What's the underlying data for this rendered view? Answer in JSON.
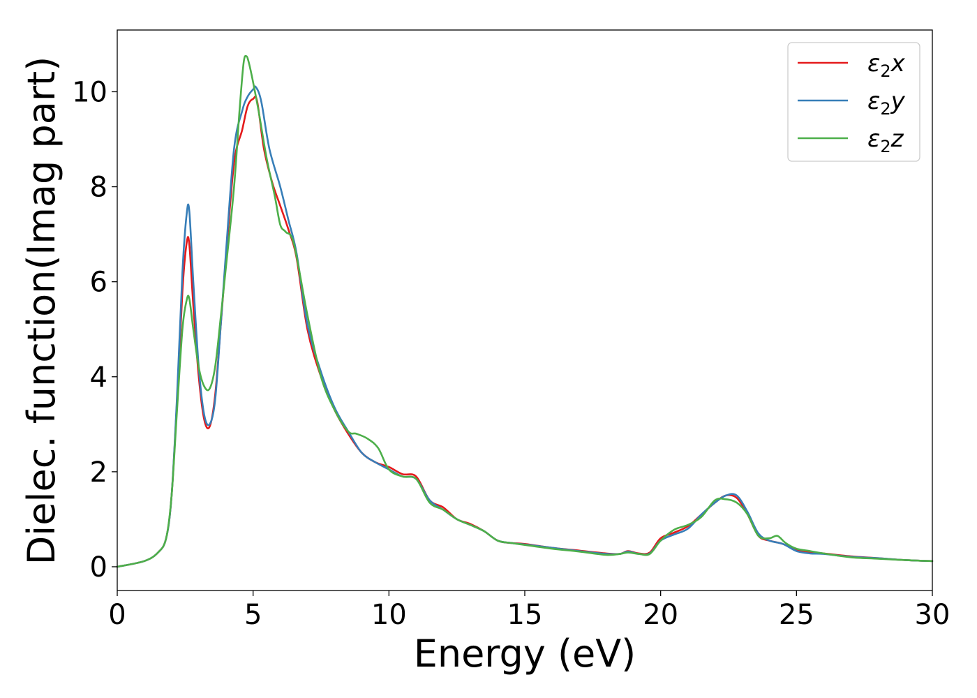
{
  "chart_data": {
    "type": "line",
    "title": "",
    "xlabel": "Energy (eV)",
    "ylabel": "Dielec. function(Imag part)",
    "xlim": [
      0,
      30
    ],
    "ylim": [
      -0.5,
      11.3
    ],
    "xticks": [
      0,
      5,
      10,
      15,
      20,
      25,
      30
    ],
    "yticks": [
      0,
      2,
      4,
      6,
      8,
      10
    ],
    "grid": false,
    "legend_position": "top-right",
    "series": [
      {
        "name": "ε₂x",
        "legend_base": "ε",
        "legend_sub": "2",
        "legend_var": "x",
        "color": "#e41a1c",
        "x": [
          0,
          1,
          1.5,
          1.8,
          2.0,
          2.2,
          2.4,
          2.55,
          2.65,
          2.8,
          3.0,
          3.2,
          3.4,
          3.6,
          3.8,
          4.0,
          4.3,
          4.6,
          4.8,
          5.0,
          5.15,
          5.4,
          5.7,
          6.0,
          6.3,
          6.6,
          7.0,
          7.5,
          8.0,
          8.5,
          9.0,
          9.5,
          10.0,
          10.5,
          11.0,
          11.5,
          12.0,
          12.5,
          13.0,
          13.5,
          14.0,
          14.5,
          15.0,
          16.0,
          17.0,
          18.0,
          18.5,
          18.8,
          19.2,
          19.6,
          20.0,
          20.5,
          21.0,
          21.5,
          22.0,
          22.4,
          22.8,
          23.2,
          23.6,
          24.0,
          24.5,
          25.0,
          25.5,
          26.0,
          27.0,
          28.0,
          29.0,
          30.0
        ],
        "values": [
          0,
          0.12,
          0.3,
          0.6,
          1.5,
          3.5,
          5.8,
          6.8,
          6.8,
          5.5,
          4.0,
          3.1,
          2.95,
          3.6,
          5.0,
          6.5,
          8.5,
          9.2,
          9.7,
          9.85,
          9.8,
          8.8,
          8.1,
          7.6,
          7.1,
          6.5,
          5.0,
          4.0,
          3.3,
          2.8,
          2.4,
          2.2,
          2.1,
          1.95,
          1.9,
          1.4,
          1.25,
          1.0,
          0.9,
          0.75,
          0.55,
          0.5,
          0.48,
          0.4,
          0.34,
          0.28,
          0.27,
          0.33,
          0.28,
          0.3,
          0.6,
          0.72,
          0.85,
          1.1,
          1.35,
          1.5,
          1.45,
          1.1,
          0.65,
          0.55,
          0.48,
          0.35,
          0.3,
          0.28,
          0.22,
          0.18,
          0.14,
          0.12
        ]
      },
      {
        "name": "ε₂y",
        "legend_base": "ε",
        "legend_sub": "2",
        "legend_var": "y",
        "color": "#377eb8",
        "x": [
          0,
          1,
          1.5,
          1.8,
          2.0,
          2.2,
          2.4,
          2.55,
          2.65,
          2.8,
          3.0,
          3.2,
          3.4,
          3.6,
          3.8,
          4.0,
          4.3,
          4.6,
          4.8,
          5.0,
          5.1,
          5.3,
          5.6,
          6.0,
          6.3,
          6.6,
          7.0,
          7.5,
          8.0,
          8.5,
          9.0,
          9.5,
          10.0,
          10.5,
          11.0,
          11.5,
          12.0,
          12.5,
          13.0,
          13.5,
          14.0,
          14.5,
          15.0,
          16.0,
          17.0,
          18.0,
          18.5,
          18.8,
          19.2,
          19.6,
          20.0,
          20.5,
          21.0,
          21.5,
          22.0,
          22.4,
          22.8,
          23.2,
          23.6,
          24.0,
          24.5,
          25.0,
          25.5,
          26.0,
          27.0,
          28.0,
          29.0,
          30.0
        ],
        "values": [
          0,
          0.12,
          0.3,
          0.6,
          1.5,
          3.6,
          6.2,
          7.4,
          7.5,
          6.0,
          4.2,
          3.2,
          3.0,
          3.5,
          5.0,
          6.6,
          8.8,
          9.6,
          9.9,
          10.05,
          10.1,
          9.8,
          8.8,
          8.0,
          7.3,
          6.6,
          5.1,
          4.1,
          3.35,
          2.85,
          2.4,
          2.2,
          2.05,
          1.9,
          1.85,
          1.4,
          1.2,
          1.0,
          0.88,
          0.75,
          0.55,
          0.5,
          0.47,
          0.4,
          0.33,
          0.27,
          0.27,
          0.32,
          0.27,
          0.28,
          0.55,
          0.68,
          0.8,
          1.1,
          1.35,
          1.5,
          1.5,
          1.15,
          0.7,
          0.55,
          0.48,
          0.33,
          0.28,
          0.27,
          0.21,
          0.18,
          0.14,
          0.12
        ]
      },
      {
        "name": "ε₂z",
        "legend_base": "ε",
        "legend_sub": "2",
        "legend_var": "z",
        "color": "#4daf4a",
        "x": [
          0,
          1,
          1.5,
          1.8,
          2.0,
          2.2,
          2.4,
          2.55,
          2.65,
          2.8,
          3.0,
          3.2,
          3.4,
          3.6,
          3.8,
          4.0,
          4.3,
          4.5,
          4.65,
          4.75,
          4.85,
          5.0,
          5.2,
          5.5,
          5.8,
          6.0,
          6.2,
          6.5,
          7.0,
          7.5,
          8.0,
          8.5,
          8.8,
          9.2,
          9.6,
          10.0,
          10.5,
          11.0,
          11.5,
          12.0,
          12.5,
          13.0,
          13.5,
          14.0,
          14.5,
          15.0,
          16.0,
          17.0,
          18.0,
          18.5,
          18.8,
          19.2,
          19.6,
          20.0,
          20.5,
          21.0,
          21.5,
          22.0,
          22.4,
          22.8,
          23.2,
          23.6,
          24.0,
          24.3,
          24.6,
          25.0,
          25.5,
          26.0,
          27.0,
          28.0,
          29.0,
          30.0
        ],
        "values": [
          0,
          0.12,
          0.3,
          0.6,
          1.5,
          3.3,
          5.0,
          5.6,
          5.65,
          5.0,
          4.2,
          3.8,
          3.75,
          4.2,
          5.2,
          6.3,
          8.0,
          9.6,
          10.6,
          10.75,
          10.6,
          10.2,
          9.6,
          8.6,
          7.8,
          7.2,
          7.05,
          6.8,
          5.3,
          4.0,
          3.3,
          2.85,
          2.8,
          2.7,
          2.5,
          2.05,
          1.9,
          1.85,
          1.35,
          1.2,
          1.0,
          0.88,
          0.75,
          0.55,
          0.5,
          0.46,
          0.38,
          0.32,
          0.25,
          0.27,
          0.3,
          0.27,
          0.27,
          0.55,
          0.78,
          0.88,
          1.05,
          1.4,
          1.42,
          1.35,
          1.1,
          0.65,
          0.6,
          0.65,
          0.5,
          0.38,
          0.33,
          0.28,
          0.2,
          0.17,
          0.14,
          0.12
        ]
      }
    ]
  }
}
